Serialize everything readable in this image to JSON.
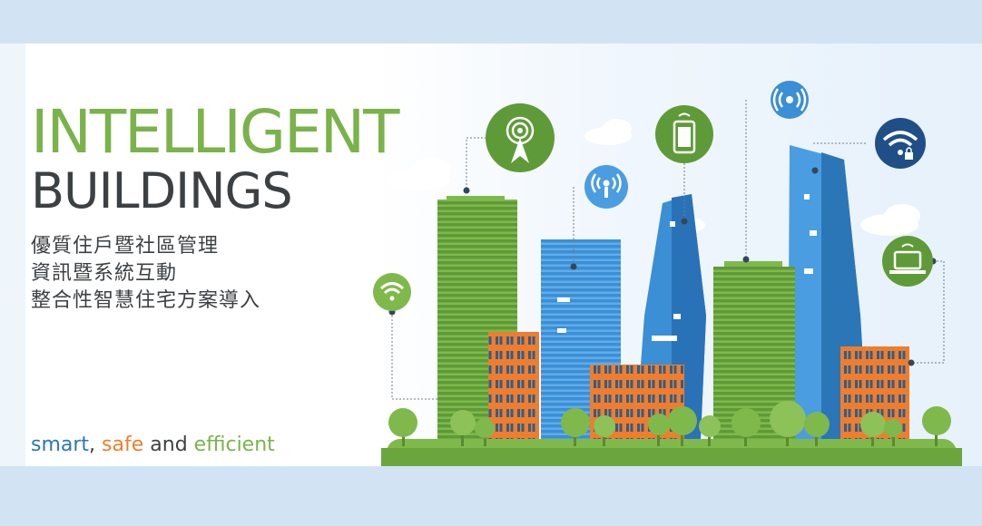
{
  "headline": {
    "line1": "INTELLIGENT",
    "line2": "BUILDINGS"
  },
  "subtitle": {
    "line1": "優質住戶暨社區管理",
    "line2": "資訊暨系統互動",
    "line3": "整合性智慧住宅方案導入"
  },
  "tagline": {
    "smart": "smart",
    "comma": ", ",
    "safe": "safe",
    "and": " and ",
    "efficient": "efficient"
  },
  "colors": {
    "green": "#79b34a",
    "dark_text": "#3d4043",
    "blue": "#2b76b6",
    "orange": "#ef7d2d",
    "band": "#d2e4f3"
  },
  "icons": [
    "wifi-icon",
    "antenna-tower-icon",
    "signal-broadcast-icon",
    "smartphone-icon",
    "wireless-radio-icon",
    "secure-wifi-icon",
    "laptop-icon"
  ]
}
